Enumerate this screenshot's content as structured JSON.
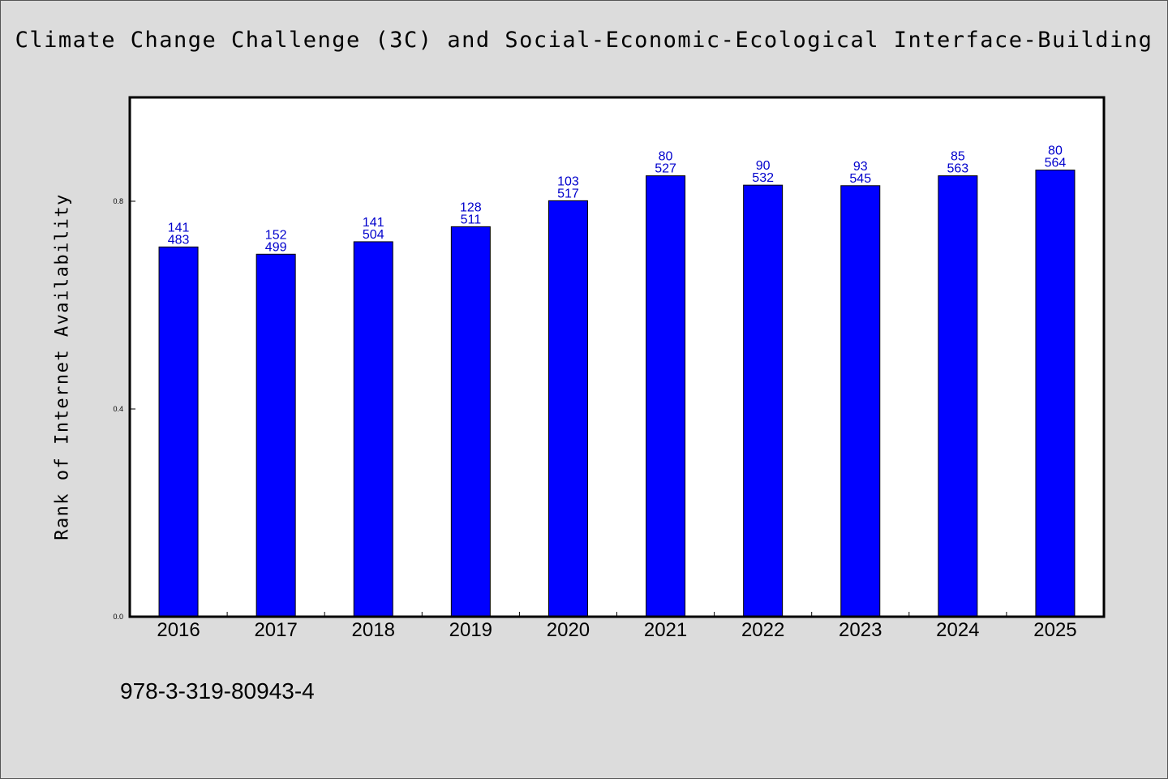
{
  "footer": {
    "code": "978-3-319-80943-4"
  },
  "colors": {
    "bar": "#0000ff",
    "bar_edge": "#000000",
    "label": "#0000cc",
    "background": "#dcdcdc",
    "plot_bg": "#ffffff"
  },
  "chart_data": {
    "type": "bar",
    "title": "Climate Change Challenge (3C) and Social-Economic-Ecological Interface-Building",
    "xlabel": "",
    "ylabel": "Rank of Internet Availability",
    "categories": [
      "2016",
      "2017",
      "2018",
      "2019",
      "2020",
      "2021",
      "2022",
      "2023",
      "2024",
      "2025"
    ],
    "values": [
      0.712,
      0.698,
      0.722,
      0.751,
      0.801,
      0.849,
      0.831,
      0.83,
      0.849,
      0.86
    ],
    "label_top": [
      "141",
      "152",
      "141",
      "128",
      "103",
      "80",
      "90",
      "93",
      "85",
      "80"
    ],
    "label_bottom": [
      "483",
      "499",
      "504",
      "511",
      "517",
      "527",
      "532",
      "545",
      "563",
      "564"
    ],
    "ylim": [
      0,
      1.0
    ],
    "yticks": [
      "0.0",
      "0.4",
      "0.8"
    ],
    "grid": false,
    "legend": "none"
  }
}
